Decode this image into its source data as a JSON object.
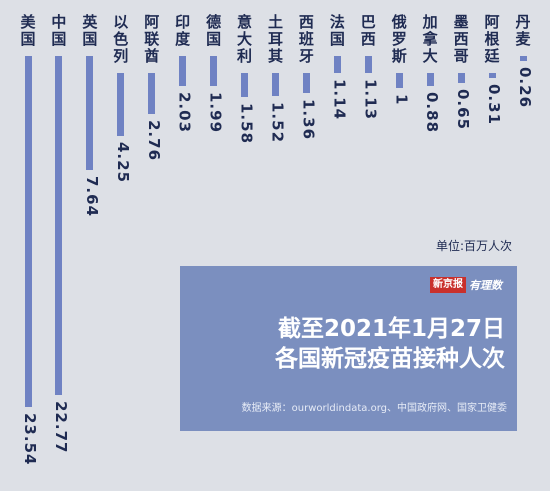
{
  "chart_data": {
    "type": "bar",
    "orientation": "vertical-downward",
    "title": "截至2021年1月27日\n各国新冠疫苗接种人次",
    "title_line1": "截至2021年1月27日",
    "title_line2": "各国新冠疫苗接种人次",
    "unit_label": "单位:百万人次",
    "source": "数据来源：ourworldindata.org、中国政府网、国家卫健委",
    "categories": [
      "美国",
      "中国",
      "英国",
      "以色列",
      "阿联酋",
      "印度",
      "德国",
      "意大利",
      "土耳其",
      "西班牙",
      "法国",
      "巴西",
      "俄罗斯",
      "加拿大",
      "墨西哥",
      "阿根廷",
      "丹麦"
    ],
    "values": [
      23.54,
      22.77,
      7.64,
      4.25,
      2.76,
      2.03,
      1.99,
      1.58,
      1.52,
      1.36,
      1.14,
      1.13,
      1,
      0.88,
      0.65,
      0.31,
      0.26
    ],
    "value_labels": [
      "23.54",
      "22.77",
      "7.64",
      "4.25",
      "2.76",
      "2.03",
      "1.99",
      "1.58",
      "1.52",
      "1.36",
      "1.14",
      "1.13",
      "1",
      "0.88",
      "0.65",
      "0.31",
      "0.26"
    ],
    "colors": {
      "bar": "#6f82c3",
      "text": "#1f2b52",
      "panel": "#7b8fbf",
      "background": "#dde0e6"
    }
  },
  "logo": {
    "brand": "新京报",
    "sub": "有理数"
  }
}
